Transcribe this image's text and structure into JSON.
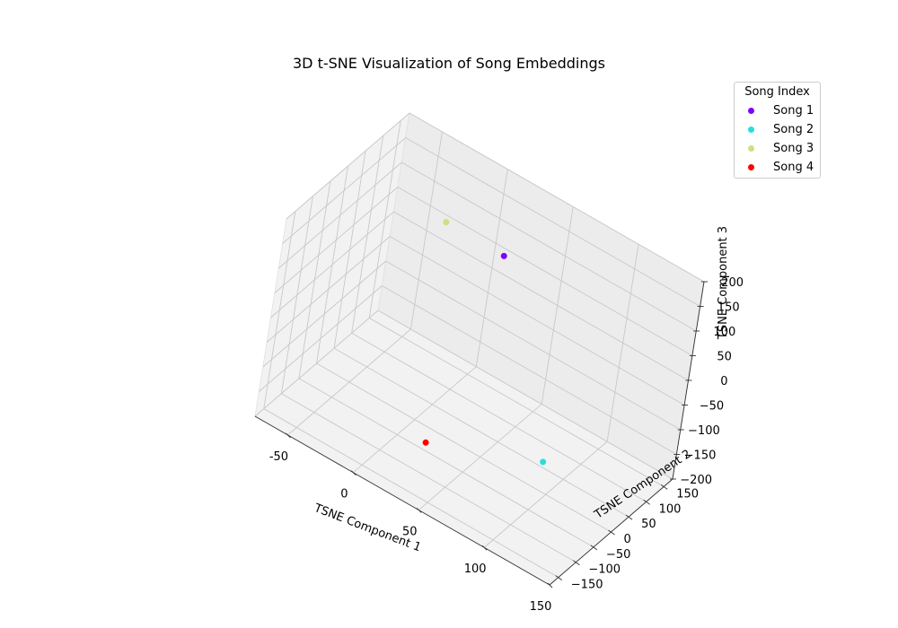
{
  "chart_data": {
    "type": "scatter",
    "title": "3D t-SNE Visualization of Song Embeddings",
    "xlabel": "TSNE Component 1",
    "ylabel": "TSNE Component 2",
    "zlabel": "TSNE Component 3",
    "xlim": [
      -75,
      150
    ],
    "ylim": [
      -175,
      175
    ],
    "zlim": [
      -200,
      200
    ],
    "xticks": [
      -50,
      0,
      50,
      100,
      150
    ],
    "yticks": [
      -150,
      -100,
      -50,
      0,
      50,
      100,
      150
    ],
    "zticks": [
      -200,
      -150,
      -100,
      -50,
      0,
      50,
      100,
      150,
      200
    ],
    "grid": true,
    "legend": {
      "title": "Song Index",
      "placement": "top-right outside"
    },
    "series": [
      {
        "name": "Song 1",
        "color": "#8000ff",
        "x": 40,
        "y": 20,
        "z": 180
      },
      {
        "name": "Song 2",
        "color": "#2adddd",
        "x": 120,
        "y": -120,
        "z": -30
      },
      {
        "name": "Song 3",
        "color": "#d4dd80",
        "x": 0,
        "y": 0,
        "z": 200
      },
      {
        "name": "Song 4",
        "color": "#ff0000",
        "x": 40,
        "y": -140,
        "z": -100
      }
    ]
  }
}
